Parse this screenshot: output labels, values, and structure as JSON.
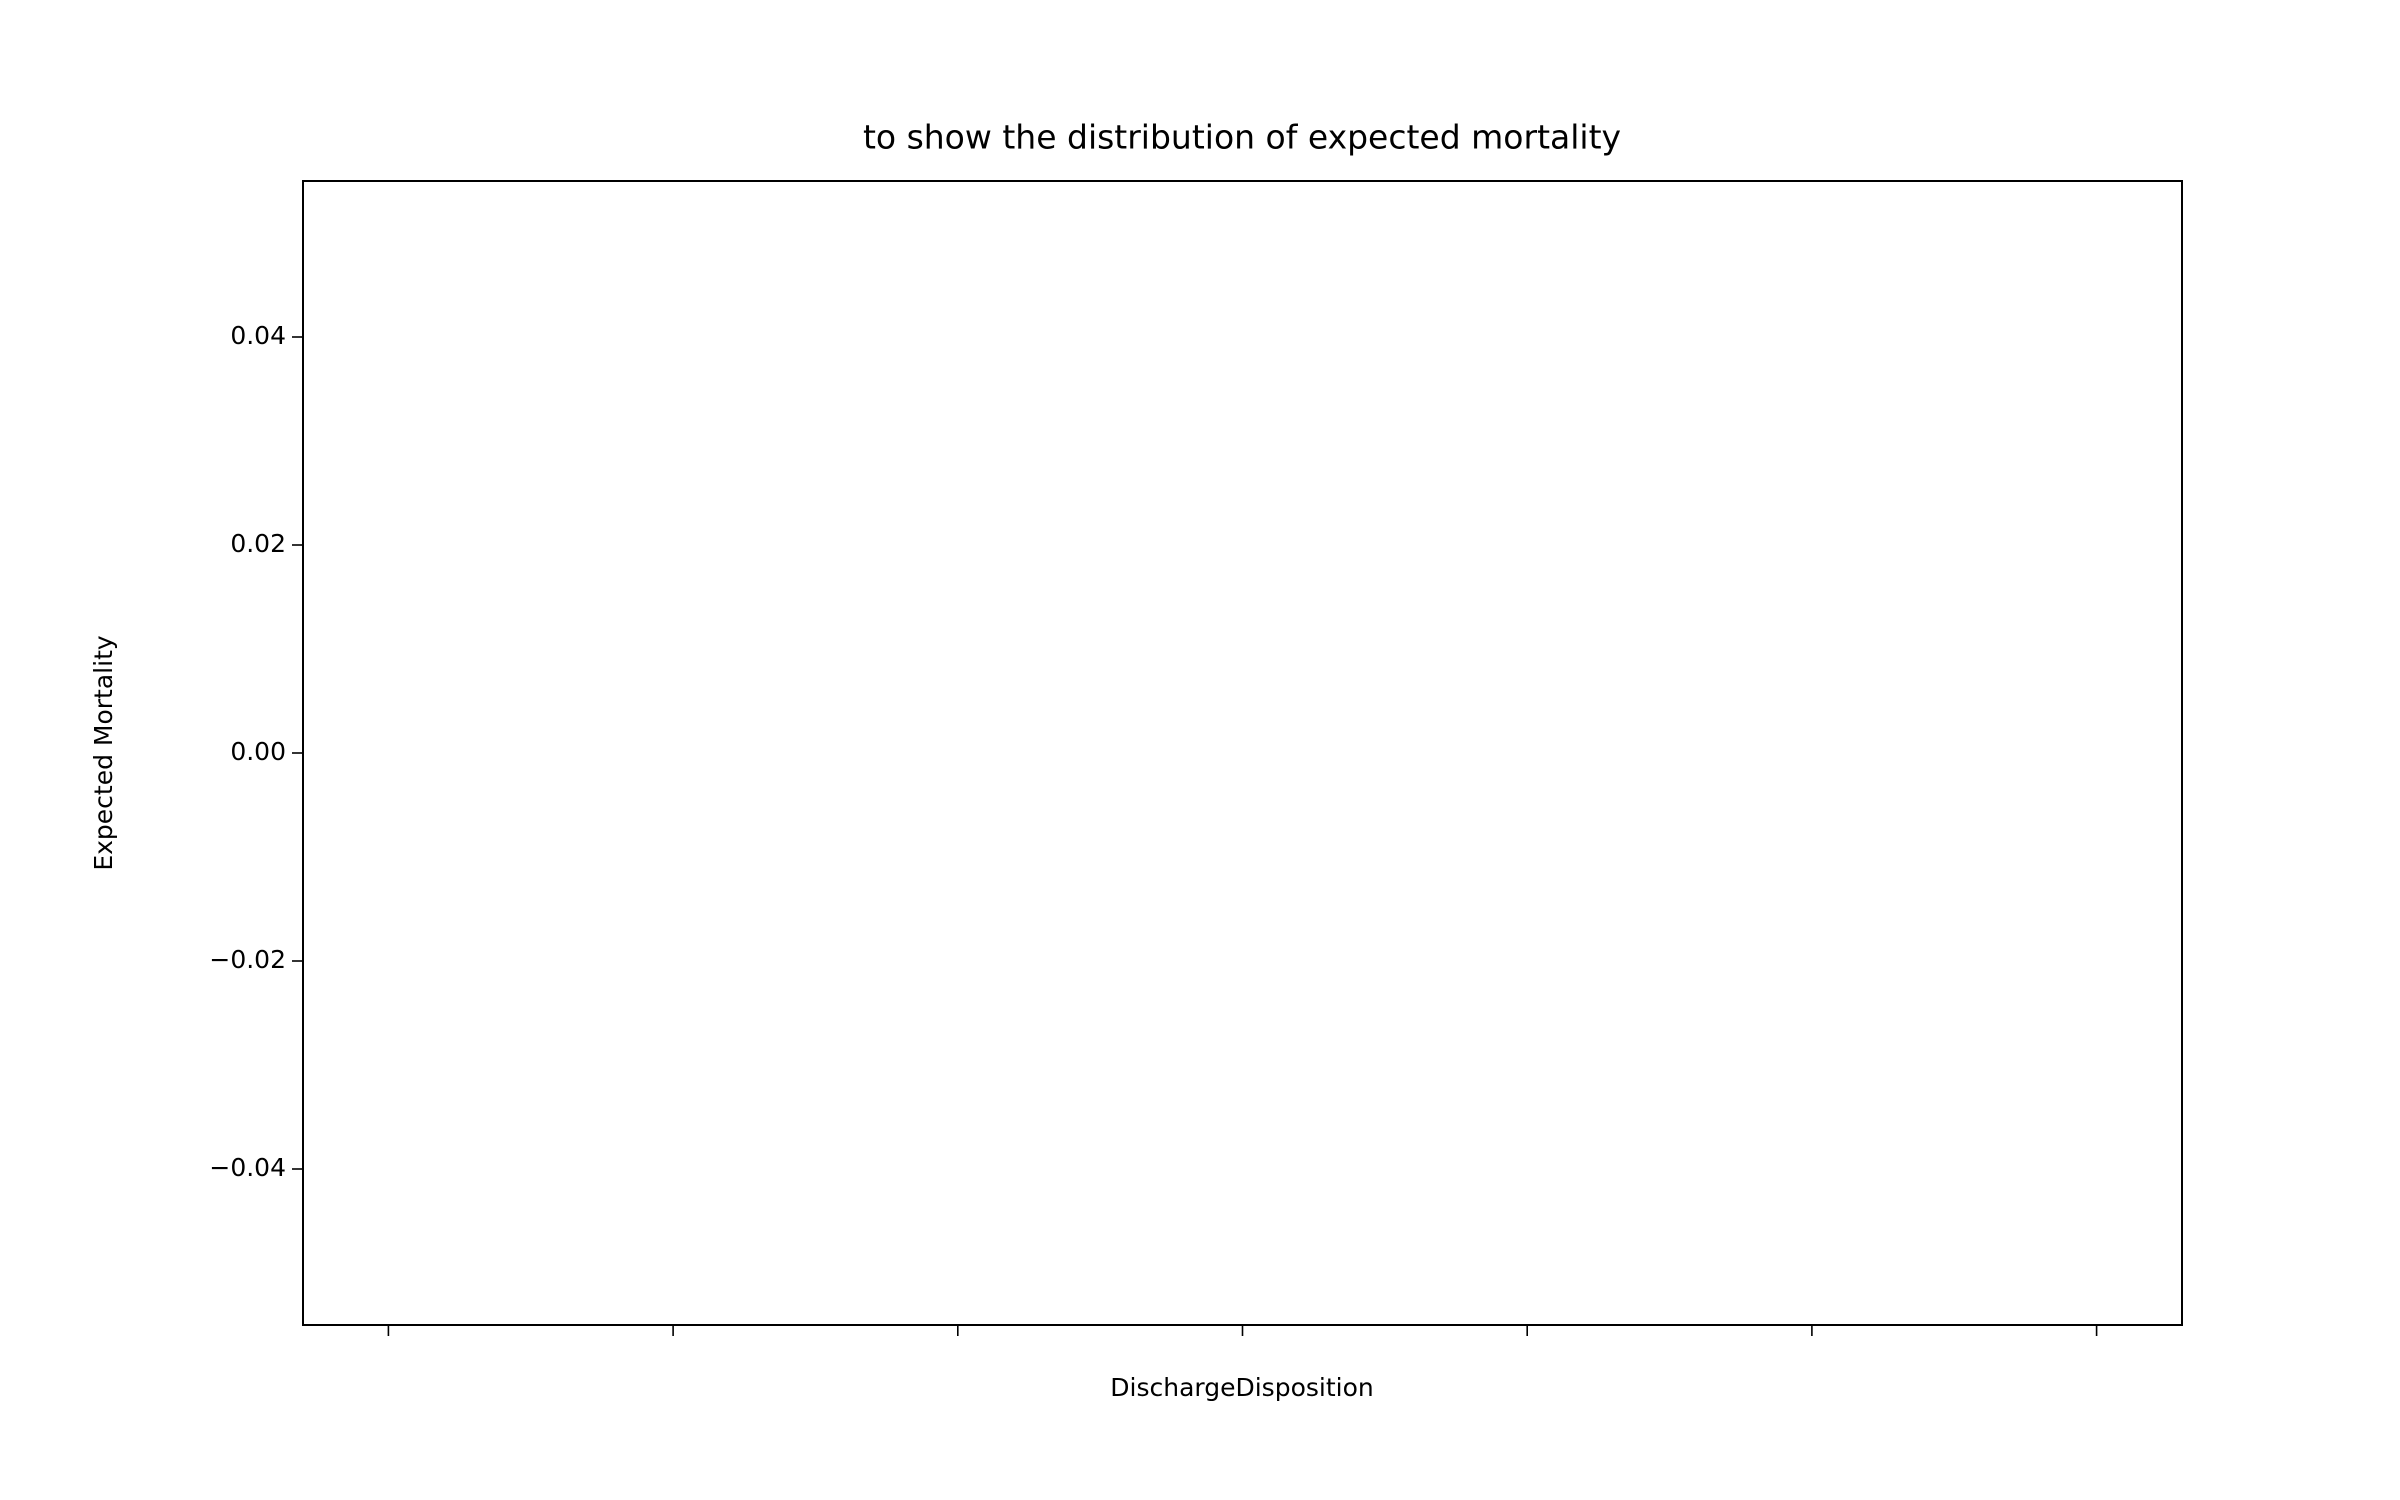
{
  "chart_data": {
    "type": "box",
    "title": "to show the distribution of expected mortality",
    "xlabel": "DischargeDisposition",
    "ylabel": "Expected Mortality",
    "categories": [
      null,
      null,
      null,
      null,
      null,
      null,
      null
    ],
    "ylim": [
      -0.055,
      0.055
    ],
    "yticks": [
      {
        "value": -0.04,
        "label": "−0.04"
      },
      {
        "value": -0.02,
        "label": "−0.02"
      },
      {
        "value": 0,
        "label": "0.00"
      },
      0.02,
      0.04
    ]
  }
}
